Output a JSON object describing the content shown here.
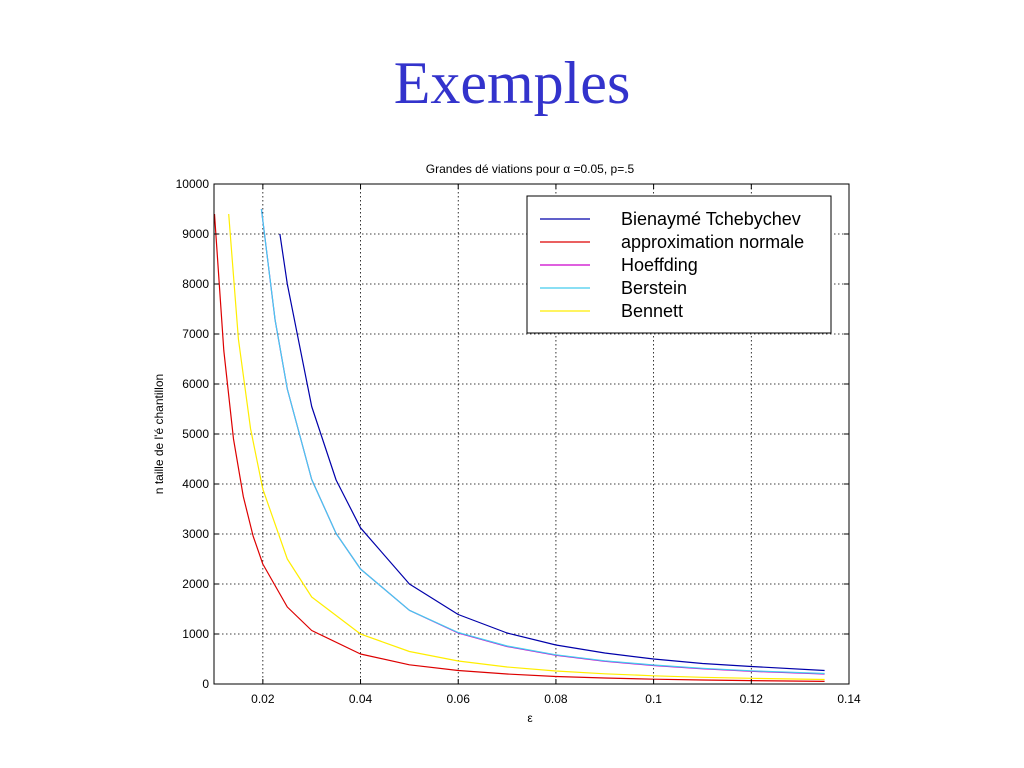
{
  "slide": {
    "title": "Exemples"
  },
  "chart_data": {
    "type": "line",
    "title": "Grandes dé viations pour α =0.05, p=.5",
    "xlabel": "ε",
    "ylabel": "n taille de l'é chantillon",
    "xlim": [
      0.01,
      0.14
    ],
    "ylim": [
      0,
      10000
    ],
    "x_ticks": [
      0.02,
      0.04,
      0.06,
      0.08,
      0.1,
      0.12,
      0.14
    ],
    "x_tick_labels": [
      "0.02",
      "0.04",
      "0.06",
      "0.08",
      "0.1",
      "0.12",
      "0.14"
    ],
    "y_ticks": [
      0,
      1000,
      2000,
      3000,
      4000,
      5000,
      6000,
      7000,
      8000,
      9000,
      10000
    ],
    "y_tick_labels": [
      "0",
      "1000",
      "2000",
      "3000",
      "4000",
      "5000",
      "6000",
      "7000",
      "8000",
      "9000",
      "10000"
    ],
    "grid": true,
    "legend_position": "top-right",
    "series": [
      {
        "name": "Bienaymé  Tchebychev",
        "color": "#0000aa",
        "x": [
          0.0235,
          0.025,
          0.03,
          0.035,
          0.04,
          0.05,
          0.06,
          0.07,
          0.08,
          0.09,
          0.1,
          0.11,
          0.12,
          0.135
        ],
        "y": [
          9000,
          8000,
          5550,
          4080,
          3125,
          2000,
          1390,
          1020,
          780,
          620,
          500,
          410,
          350,
          270
        ]
      },
      {
        "name": "approximation normale",
        "color": "#dd0000",
        "x": [
          0.0101,
          0.012,
          0.014,
          0.016,
          0.018,
          0.02,
          0.025,
          0.03,
          0.04,
          0.05,
          0.06,
          0.07,
          0.08,
          0.09,
          0.1,
          0.11,
          0.12,
          0.135
        ],
        "y": [
          9400,
          6670,
          4900,
          3750,
          2960,
          2400,
          1540,
          1070,
          600,
          385,
          270,
          200,
          150,
          120,
          96,
          80,
          67,
          53
        ]
      },
      {
        "name": "Hoeffding",
        "color": "#cc00cc",
        "x": [
          0.0197,
          0.0225,
          0.025,
          0.03,
          0.035,
          0.04,
          0.05,
          0.06,
          0.07,
          0.08,
          0.09,
          0.1,
          0.11,
          0.12,
          0.135
        ],
        "y": [
          9500,
          7280,
          5900,
          4090,
          3010,
          2300,
          1475,
          1020,
          750,
          575,
          455,
          370,
          305,
          255,
          200
        ]
      },
      {
        "name": "Berstein",
        "color": "#44ccee",
        "x": [
          0.0197,
          0.0225,
          0.025,
          0.03,
          0.035,
          0.04,
          0.05,
          0.06,
          0.07,
          0.08,
          0.09,
          0.1,
          0.11,
          0.12,
          0.135
        ],
        "y": [
          9500,
          7280,
          5900,
          4090,
          3010,
          2300,
          1475,
          1030,
          760,
          585,
          465,
          380,
          315,
          265,
          210
        ]
      },
      {
        "name": "Bennett",
        "color": "#ffee00",
        "x": [
          0.013,
          0.015,
          0.0175,
          0.02,
          0.025,
          0.03,
          0.04,
          0.05,
          0.06,
          0.07,
          0.08,
          0.09,
          0.1,
          0.11,
          0.12,
          0.135
        ],
        "y": [
          9400,
          6900,
          5100,
          3900,
          2500,
          1740,
          1000,
          650,
          460,
          340,
          260,
          205,
          165,
          135,
          115,
          90
        ]
      }
    ]
  }
}
